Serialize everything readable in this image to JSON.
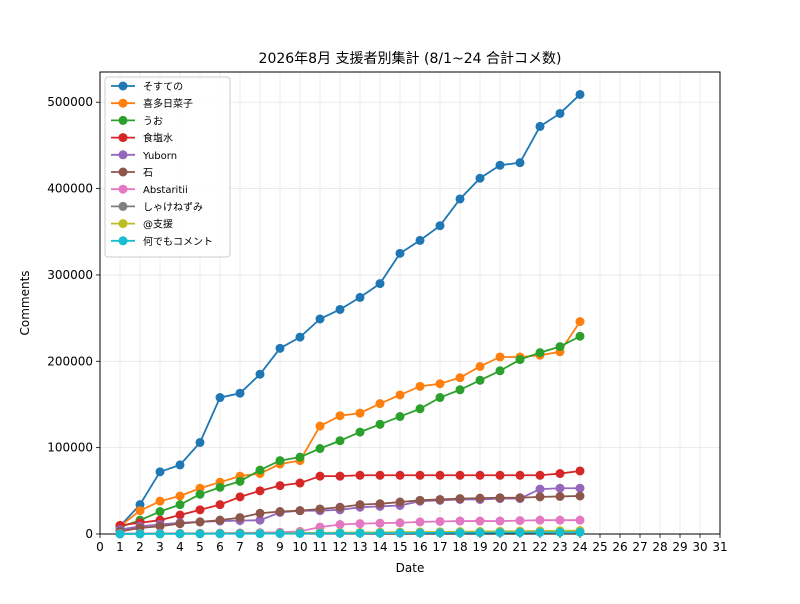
{
  "chart_data": {
    "type": "line",
    "title": "2026年8月 支援者別集計 (8/1~24 合計コメ数)",
    "xlabel": "Date",
    "ylabel": "Comments",
    "xlim": [
      0,
      31
    ],
    "ylim": [
      0,
      535000
    ],
    "x_ticks": [
      "0",
      "1",
      "2",
      "3",
      "4",
      "5",
      "6",
      "7",
      "8",
      "9",
      "10",
      "11",
      "12",
      "13",
      "14",
      "15",
      "16",
      "17",
      "18",
      "19",
      "20",
      "21",
      "22",
      "23",
      "24",
      "25",
      "26",
      "27",
      "28",
      "29",
      "30",
      "31"
    ],
    "y_ticks": [
      "0",
      "100000",
      "200000",
      "300000",
      "400000",
      "500000"
    ],
    "grid": true,
    "legend_position": "top-left",
    "x": [
      1,
      2,
      3,
      4,
      5,
      6,
      7,
      8,
      9,
      10,
      11,
      12,
      13,
      14,
      15,
      16,
      17,
      18,
      19,
      20,
      21,
      22,
      23,
      24
    ],
    "series": [
      {
        "name": "そすての",
        "color": "#1f77b4",
        "values": [
          9000,
          34000,
          72000,
          80000,
          106000,
          158000,
          163000,
          185000,
          215000,
          228000,
          249000,
          260000,
          274000,
          290000,
          325000,
          340000,
          357000,
          388000,
          412000,
          427000,
          430000,
          472000,
          487000,
          509000
        ]
      },
      {
        "name": "喜多日菜子",
        "color": "#ff7f0e",
        "values": [
          9000,
          27000,
          38000,
          44000,
          53000,
          60000,
          67000,
          70000,
          81000,
          85000,
          125000,
          137000,
          140000,
          151000,
          161000,
          171000,
          174000,
          181000,
          194000,
          205000,
          205000,
          207000,
          211000,
          246000
        ]
      },
      {
        "name": "うお",
        "color": "#2ca02c",
        "values": [
          8000,
          16000,
          26000,
          34000,
          46000,
          54000,
          61000,
          74000,
          85000,
          89000,
          99000,
          108000,
          118000,
          127000,
          136000,
          145000,
          158000,
          167000,
          178000,
          189000,
          202000,
          210000,
          217000,
          229000
        ]
      },
      {
        "name": "食塩水",
        "color": "#d62728",
        "values": [
          10000,
          13000,
          16000,
          22000,
          28000,
          34000,
          43000,
          50000,
          56000,
          59000,
          67000,
          67000,
          68000,
          68000,
          68000,
          68000,
          68000,
          68000,
          68000,
          68000,
          68000,
          68000,
          70000,
          73000
        ]
      },
      {
        "name": "Yuborn",
        "color": "#9467bd",
        "values": [
          5000,
          9000,
          11000,
          13000,
          14000,
          15000,
          15500,
          16000,
          25000,
          27000,
          27000,
          28000,
          31000,
          32000,
          33000,
          38000,
          39000,
          40000,
          40000,
          41000,
          41000,
          52000,
          53000,
          53000
        ]
      },
      {
        "name": "石",
        "color": "#8c564b",
        "values": [
          3000,
          7000,
          9000,
          12000,
          14000,
          16000,
          19000,
          24000,
          26000,
          27000,
          29000,
          31000,
          34000,
          35000,
          37000,
          39000,
          40000,
          41000,
          41500,
          42000,
          42000,
          43000,
          43500,
          44000
        ]
      },
      {
        "name": "Abstaritii",
        "color": "#e377c2",
        "values": [
          500,
          600,
          700,
          800,
          900,
          1000,
          1200,
          1500,
          2000,
          3000,
          8000,
          11000,
          12000,
          12500,
          13000,
          14000,
          14500,
          15000,
          15000,
          15000,
          15500,
          16000,
          16000,
          16000
        ]
      },
      {
        "name": "しゃけねずみ",
        "color": "#7f7f7f",
        "values": [
          200,
          300,
          400,
          500,
          600,
          700,
          800,
          900,
          1000,
          1100,
          1200,
          1300,
          1400,
          1500,
          1600,
          1700,
          1800,
          1900,
          2000,
          2100,
          2200,
          2300,
          2400,
          2500
        ]
      },
      {
        "name": "@支援",
        "color": "#bcbd22",
        "values": [
          100,
          150,
          200,
          300,
          400,
          500,
          600,
          700,
          900,
          1100,
          1300,
          1500,
          1700,
          1900,
          2100,
          2300,
          2500,
          2700,
          2900,
          3100,
          3300,
          3500,
          3700,
          3900
        ]
      },
      {
        "name": "何でもコメント",
        "color": "#17becf",
        "values": [
          50,
          80,
          100,
          150,
          200,
          250,
          300,
          400,
          500,
          600,
          700,
          800,
          900,
          1000,
          1100,
          1200,
          1300,
          1400,
          1500,
          1600,
          1700,
          1800,
          1900,
          2000
        ]
      }
    ]
  }
}
